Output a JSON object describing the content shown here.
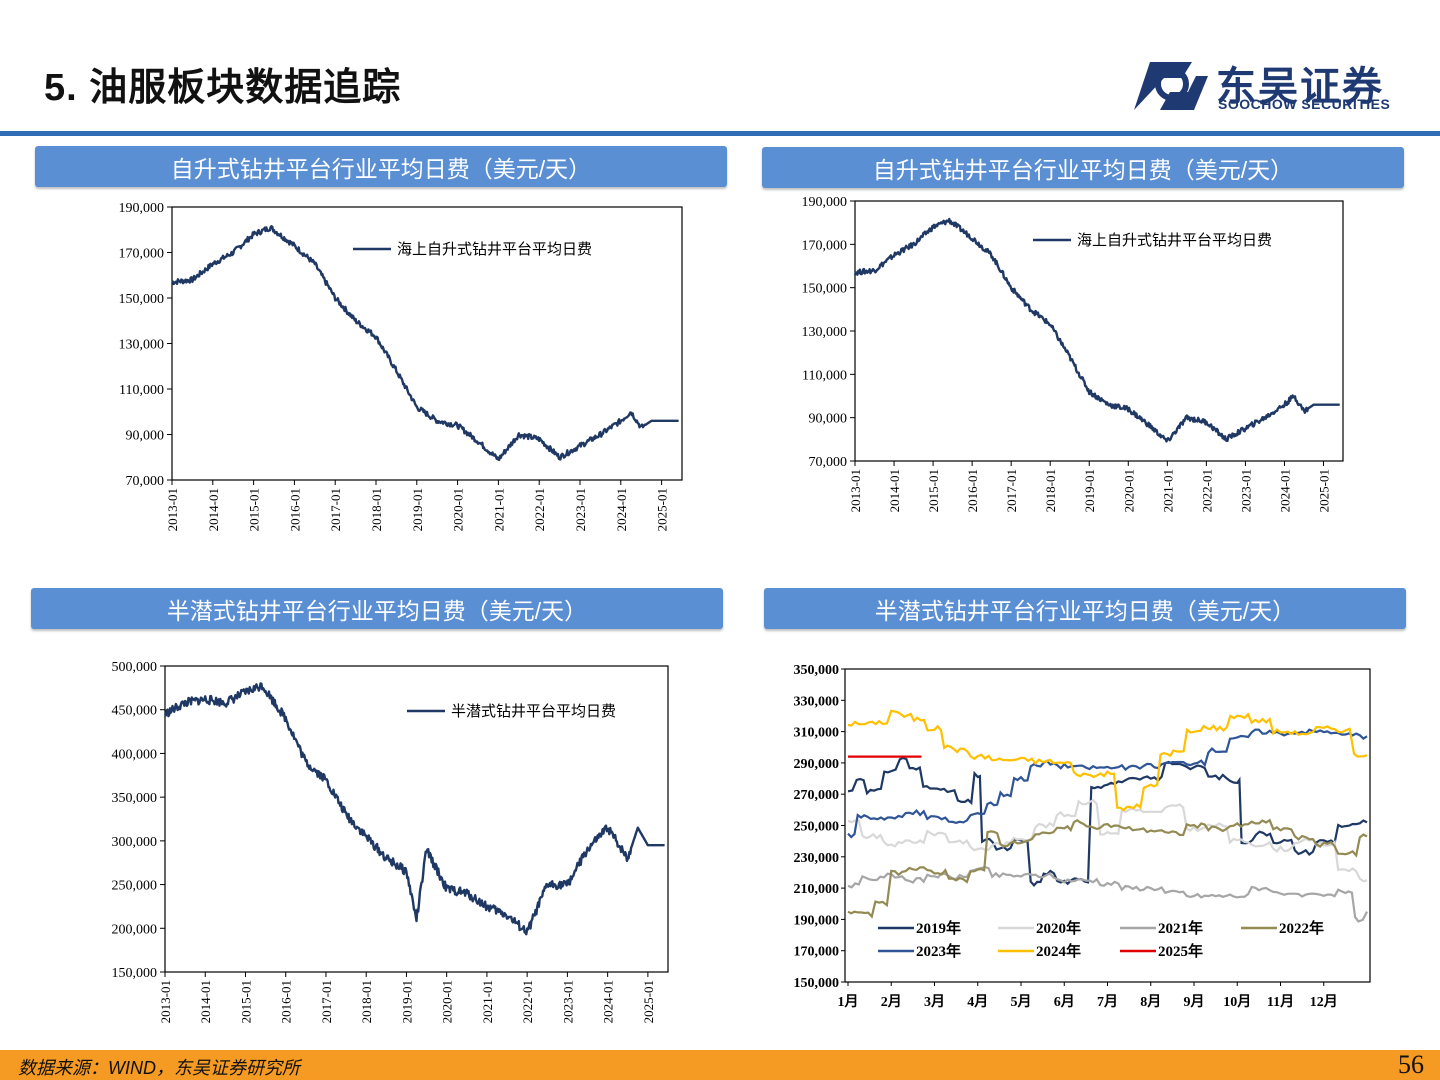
{
  "header": {
    "title": "5. 油服板块数据追踪"
  },
  "logo": {
    "cn": "东吴证券",
    "en": "SOOCHOW SECURITIES"
  },
  "colors": {
    "banner": "#5b8fd4",
    "rule": "#2f6db5",
    "footer": "#f59a23",
    "series_navy": "#1f3864"
  },
  "panels": [
    {
      "banner": "自升式钻井平台行业平均日费（美元/天）"
    },
    {
      "banner": "自升式钻井平台行业平均日费（美元/天）"
    },
    {
      "banner": "半潜式钻井平台行业平均日费（美元/天）"
    },
    {
      "banner": "半潜式钻井平台行业平均日费（美元/天）"
    }
  ],
  "footer": {
    "source": "数据来源：WIND，东吴证券研究所",
    "page": "56"
  },
  "chart_data": [
    {
      "type": "line",
      "ylim": [
        70000,
        190000
      ],
      "yticks": [
        "70,000",
        "90,000",
        "110,000",
        "130,000",
        "150,000",
        "170,000",
        "190,000"
      ],
      "xticks": [
        "2013-01",
        "2014-01",
        "2015-01",
        "2016-01",
        "2017-01",
        "2018-01",
        "2019-01",
        "2020-01",
        "2021-01",
        "2022-01",
        "2023-01",
        "2024-01",
        "2025-01"
      ],
      "legend": "top-right",
      "series": [
        {
          "name": "海上自升式钻井平台平均日费",
          "x": [
            "2013-01",
            "2013-07",
            "2014-01",
            "2014-07",
            "2015-01",
            "2015-06",
            "2016-01",
            "2016-07",
            "2017-01",
            "2017-07",
            "2018-01",
            "2018-07",
            "2019-01",
            "2019-07",
            "2020-01",
            "2020-07",
            "2021-01",
            "2021-07",
            "2022-01",
            "2022-07",
            "2023-01",
            "2023-07",
            "2024-01",
            "2024-04",
            "2024-07",
            "2024-10",
            "2025-01",
            "2025-06"
          ],
          "values": [
            157000,
            158000,
            165000,
            170000,
            178000,
            181000,
            173000,
            165000,
            150000,
            140000,
            133000,
            118000,
            102000,
            96000,
            94000,
            87000,
            79000,
            90000,
            88000,
            80000,
            85000,
            90000,
            96000,
            100000,
            93000,
            96000,
            96000,
            96000
          ]
        }
      ]
    },
    {
      "type": "line",
      "ylim": [
        70000,
        190000
      ],
      "yticks": [
        "70,000",
        "90,000",
        "110,000",
        "130,000",
        "150,000",
        "170,000",
        "190,000"
      ],
      "xticks": [
        "2013-01",
        "2014-01",
        "2015-01",
        "2016-01",
        "2017-01",
        "2018-01",
        "2019-01",
        "2020-01",
        "2021-01",
        "2022-01",
        "2023-01",
        "2024-01",
        "2025-01"
      ],
      "legend": "top-right",
      "series": [
        {
          "name": "海上自升式钻井平台平均日费",
          "x": [
            "2013-01",
            "2013-07",
            "2014-01",
            "2014-07",
            "2015-01",
            "2015-06",
            "2016-01",
            "2016-07",
            "2017-01",
            "2017-07",
            "2018-01",
            "2018-07",
            "2019-01",
            "2019-07",
            "2020-01",
            "2020-07",
            "2021-01",
            "2021-07",
            "2022-01",
            "2022-07",
            "2023-01",
            "2023-07",
            "2024-01",
            "2024-04",
            "2024-07",
            "2024-10",
            "2025-01",
            "2025-06"
          ],
          "values": [
            157000,
            158000,
            165000,
            170000,
            178000,
            181000,
            173000,
            165000,
            150000,
            140000,
            133000,
            118000,
            102000,
            96000,
            94000,
            87000,
            79000,
            90000,
            88000,
            80000,
            85000,
            90000,
            96000,
            100000,
            93000,
            96000,
            96000,
            96000
          ]
        }
      ]
    },
    {
      "type": "line",
      "ylim": [
        150000,
        500000
      ],
      "yticks": [
        "150,000",
        "200,000",
        "250,000",
        "300,000",
        "350,000",
        "400,000",
        "450,000",
        "500,000"
      ],
      "xticks": [
        "2013-01",
        "2014-01",
        "2015-01",
        "2016-01",
        "2017-01",
        "2018-01",
        "2019-01",
        "2020-01",
        "2021-01",
        "2022-01",
        "2023-01",
        "2024-01",
        "2025-01"
      ],
      "legend": "top-right",
      "series": [
        {
          "name": "半潜式钻井平台平均日费",
          "x": [
            "2013-01",
            "2013-07",
            "2014-01",
            "2014-07",
            "2015-01",
            "2015-06",
            "2016-01",
            "2016-07",
            "2017-01",
            "2017-07",
            "2018-01",
            "2018-07",
            "2019-01",
            "2019-04",
            "2019-07",
            "2020-01",
            "2020-07",
            "2021-01",
            "2021-07",
            "2022-01",
            "2022-07",
            "2023-01",
            "2023-07",
            "2024-01",
            "2024-07",
            "2024-10",
            "2025-01",
            "2025-06"
          ],
          "values": [
            445000,
            458000,
            462000,
            458000,
            470000,
            478000,
            440000,
            390000,
            370000,
            330000,
            305000,
            280000,
            265000,
            210000,
            290000,
            245000,
            240000,
            225000,
            215000,
            195000,
            250000,
            250000,
            290000,
            315000,
            280000,
            315000,
            295000,
            295000
          ]
        }
      ]
    },
    {
      "type": "line",
      "ylim": [
        150000,
        350000
      ],
      "yticks": [
        "150,000",
        "170,000",
        "190,000",
        "210,000",
        "230,000",
        "250,000",
        "270,000",
        "290,000",
        "310,000",
        "330,000",
        "350,000"
      ],
      "categories": [
        "1月",
        "2月",
        "3月",
        "4月",
        "5月",
        "6月",
        "7月",
        "8月",
        "9月",
        "10月",
        "11月",
        "12月"
      ],
      "legend": "bottom-left",
      "series": [
        {
          "name": "2019年",
          "color": "#1f3864",
          "x": [
            0,
            0.2,
            0.6,
            1.0,
            1.2,
            1.5,
            1.9,
            2.3,
            2.7,
            3.0,
            3.1,
            3.6,
            4.0,
            4.3,
            4.6,
            5.0,
            5.4,
            5.7,
            6.0,
            6.5,
            7.0,
            7.5,
            8.0,
            8.5,
            9.0,
            9.1,
            9.6,
            10.0,
            10.5,
            11.0,
            11.5,
            12.0
          ],
          "values": [
            272000,
            280000,
            272000,
            285000,
            293000,
            286000,
            275000,
            272000,
            265000,
            282000,
            240000,
            235000,
            240000,
            213000,
            220000,
            214000,
            215000,
            275000,
            277000,
            279000,
            280000,
            290000,
            287000,
            281000,
            278000,
            240000,
            245000,
            240000,
            233000,
            240000,
            250000,
            252000
          ]
        },
        {
          "name": "2020年",
          "color": "#d8d8d8",
          "x": [
            0,
            0.5,
            1.0,
            1.5,
            2.0,
            2.5,
            3.0,
            3.5,
            4.0,
            4.5,
            5.0,
            5.5,
            6.0,
            6.5,
            7.0,
            7.5,
            8.0,
            8.5,
            9.0,
            9.5,
            10.0,
            10.5,
            11.0,
            11.5,
            12.0
          ],
          "values": [
            252000,
            243000,
            238000,
            240000,
            245000,
            240000,
            235000,
            238000,
            242000,
            250000,
            257000,
            265000,
            245000,
            260000,
            258000,
            262000,
            248000,
            250000,
            240000,
            238000,
            235000,
            240000,
            238000,
            222000,
            215000
          ]
        },
        {
          "name": "2021年",
          "color": "#a6a6a6",
          "x": [
            0,
            0.5,
            1.0,
            1.5,
            2.0,
            2.5,
            3.0,
            3.5,
            4.0,
            4.5,
            5.0,
            5.5,
            6.0,
            6.5,
            7.0,
            7.5,
            8.0,
            8.5,
            9.0,
            9.5,
            10.0,
            10.5,
            11.0,
            11.5,
            11.8,
            12.0
          ],
          "values": [
            212000,
            216000,
            218000,
            215000,
            218000,
            217000,
            222000,
            218000,
            218000,
            218000,
            215000,
            215000,
            213000,
            210000,
            210000,
            207000,
            205000,
            205000,
            205000,
            210000,
            207000,
            205000,
            205000,
            208000,
            190000,
            195000
          ]
        },
        {
          "name": "2022年",
          "color": "#948a54",
          "x": [
            0,
            0.3,
            0.8,
            1.0,
            1.5,
            2.0,
            2.5,
            3.0,
            3.3,
            3.6,
            4.0,
            4.5,
            5.0,
            5.3,
            5.6,
            6.0,
            6.5,
            7.0,
            7.5,
            8.0,
            8.5,
            9.0,
            9.5,
            10.0,
            10.5,
            11.0,
            11.5,
            12.0
          ],
          "values": [
            195000,
            193000,
            200000,
            220000,
            222000,
            220000,
            215000,
            222000,
            245000,
            238000,
            240000,
            245000,
            248000,
            252000,
            248000,
            250000,
            248000,
            247000,
            245000,
            250000,
            248000,
            250000,
            252000,
            248000,
            242000,
            238000,
            232000,
            243000
          ]
        },
        {
          "name": "2023年",
          "color": "#2f5597",
          "x": [
            0,
            0.3,
            0.6,
            1.0,
            1.5,
            2.0,
            2.5,
            3.0,
            3.3,
            3.6,
            4.0,
            4.3,
            4.6,
            5.0,
            5.5,
            6.0,
            6.5,
            7.0,
            7.5,
            8.0,
            8.5,
            9.0,
            9.5,
            10.0,
            10.5,
            11.0,
            11.5,
            12.0
          ],
          "values": [
            244000,
            256000,
            255000,
            255000,
            258000,
            255000,
            252000,
            258000,
            264000,
            270000,
            280000,
            288000,
            290000,
            288000,
            287000,
            287000,
            287000,
            288000,
            290000,
            290000,
            298000,
            306000,
            310000,
            309000,
            310000,
            310000,
            308000,
            307000
          ]
        },
        {
          "name": "2024年",
          "color": "#ffc000",
          "x": [
            0,
            0.4,
            0.8,
            1.0,
            1.3,
            1.6,
            2.0,
            2.3,
            2.6,
            3.0,
            3.5,
            4.0,
            4.5,
            5.0,
            5.3,
            5.6,
            6.0,
            6.3,
            6.6,
            7.0,
            7.3,
            7.6,
            8.0,
            8.3,
            8.6,
            9.0,
            9.5,
            10.0,
            10.5,
            11.0,
            11.5,
            11.7,
            12.0
          ],
          "values": [
            315000,
            315000,
            316000,
            323000,
            320000,
            318000,
            312000,
            300000,
            298000,
            294000,
            292000,
            292000,
            291000,
            290000,
            283000,
            282000,
            283000,
            261000,
            262000,
            275000,
            296000,
            297000,
            310000,
            313000,
            312000,
            320000,
            317000,
            310000,
            309000,
            312000,
            311000,
            295000,
            295000
          ]
        },
        {
          "name": "2025年",
          "color": "#e00000",
          "x": [
            0,
            0.5,
            1.0,
            1.5,
            1.7
          ],
          "values": [
            294000,
            294000,
            294000,
            294000,
            294000
          ]
        }
      ]
    }
  ]
}
